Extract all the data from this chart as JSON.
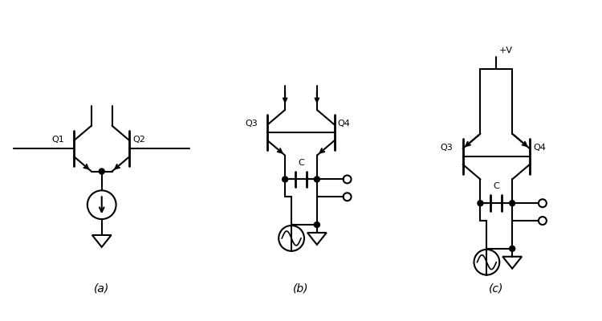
{
  "bg_color": "#ffffff",
  "line_color": "#000000",
  "lw": 1.5,
  "fig_width": 7.5,
  "fig_height": 4.0,
  "dpi": 100,
  "label_a": "(a)",
  "label_b": "(b)",
  "label_c": "(c)",
  "label_Q1": "Q1",
  "label_Q2": "Q2",
  "label_Q3": "Q3",
  "label_Q4": "Q4",
  "label_C": "C",
  "label_Vplus": "+V"
}
